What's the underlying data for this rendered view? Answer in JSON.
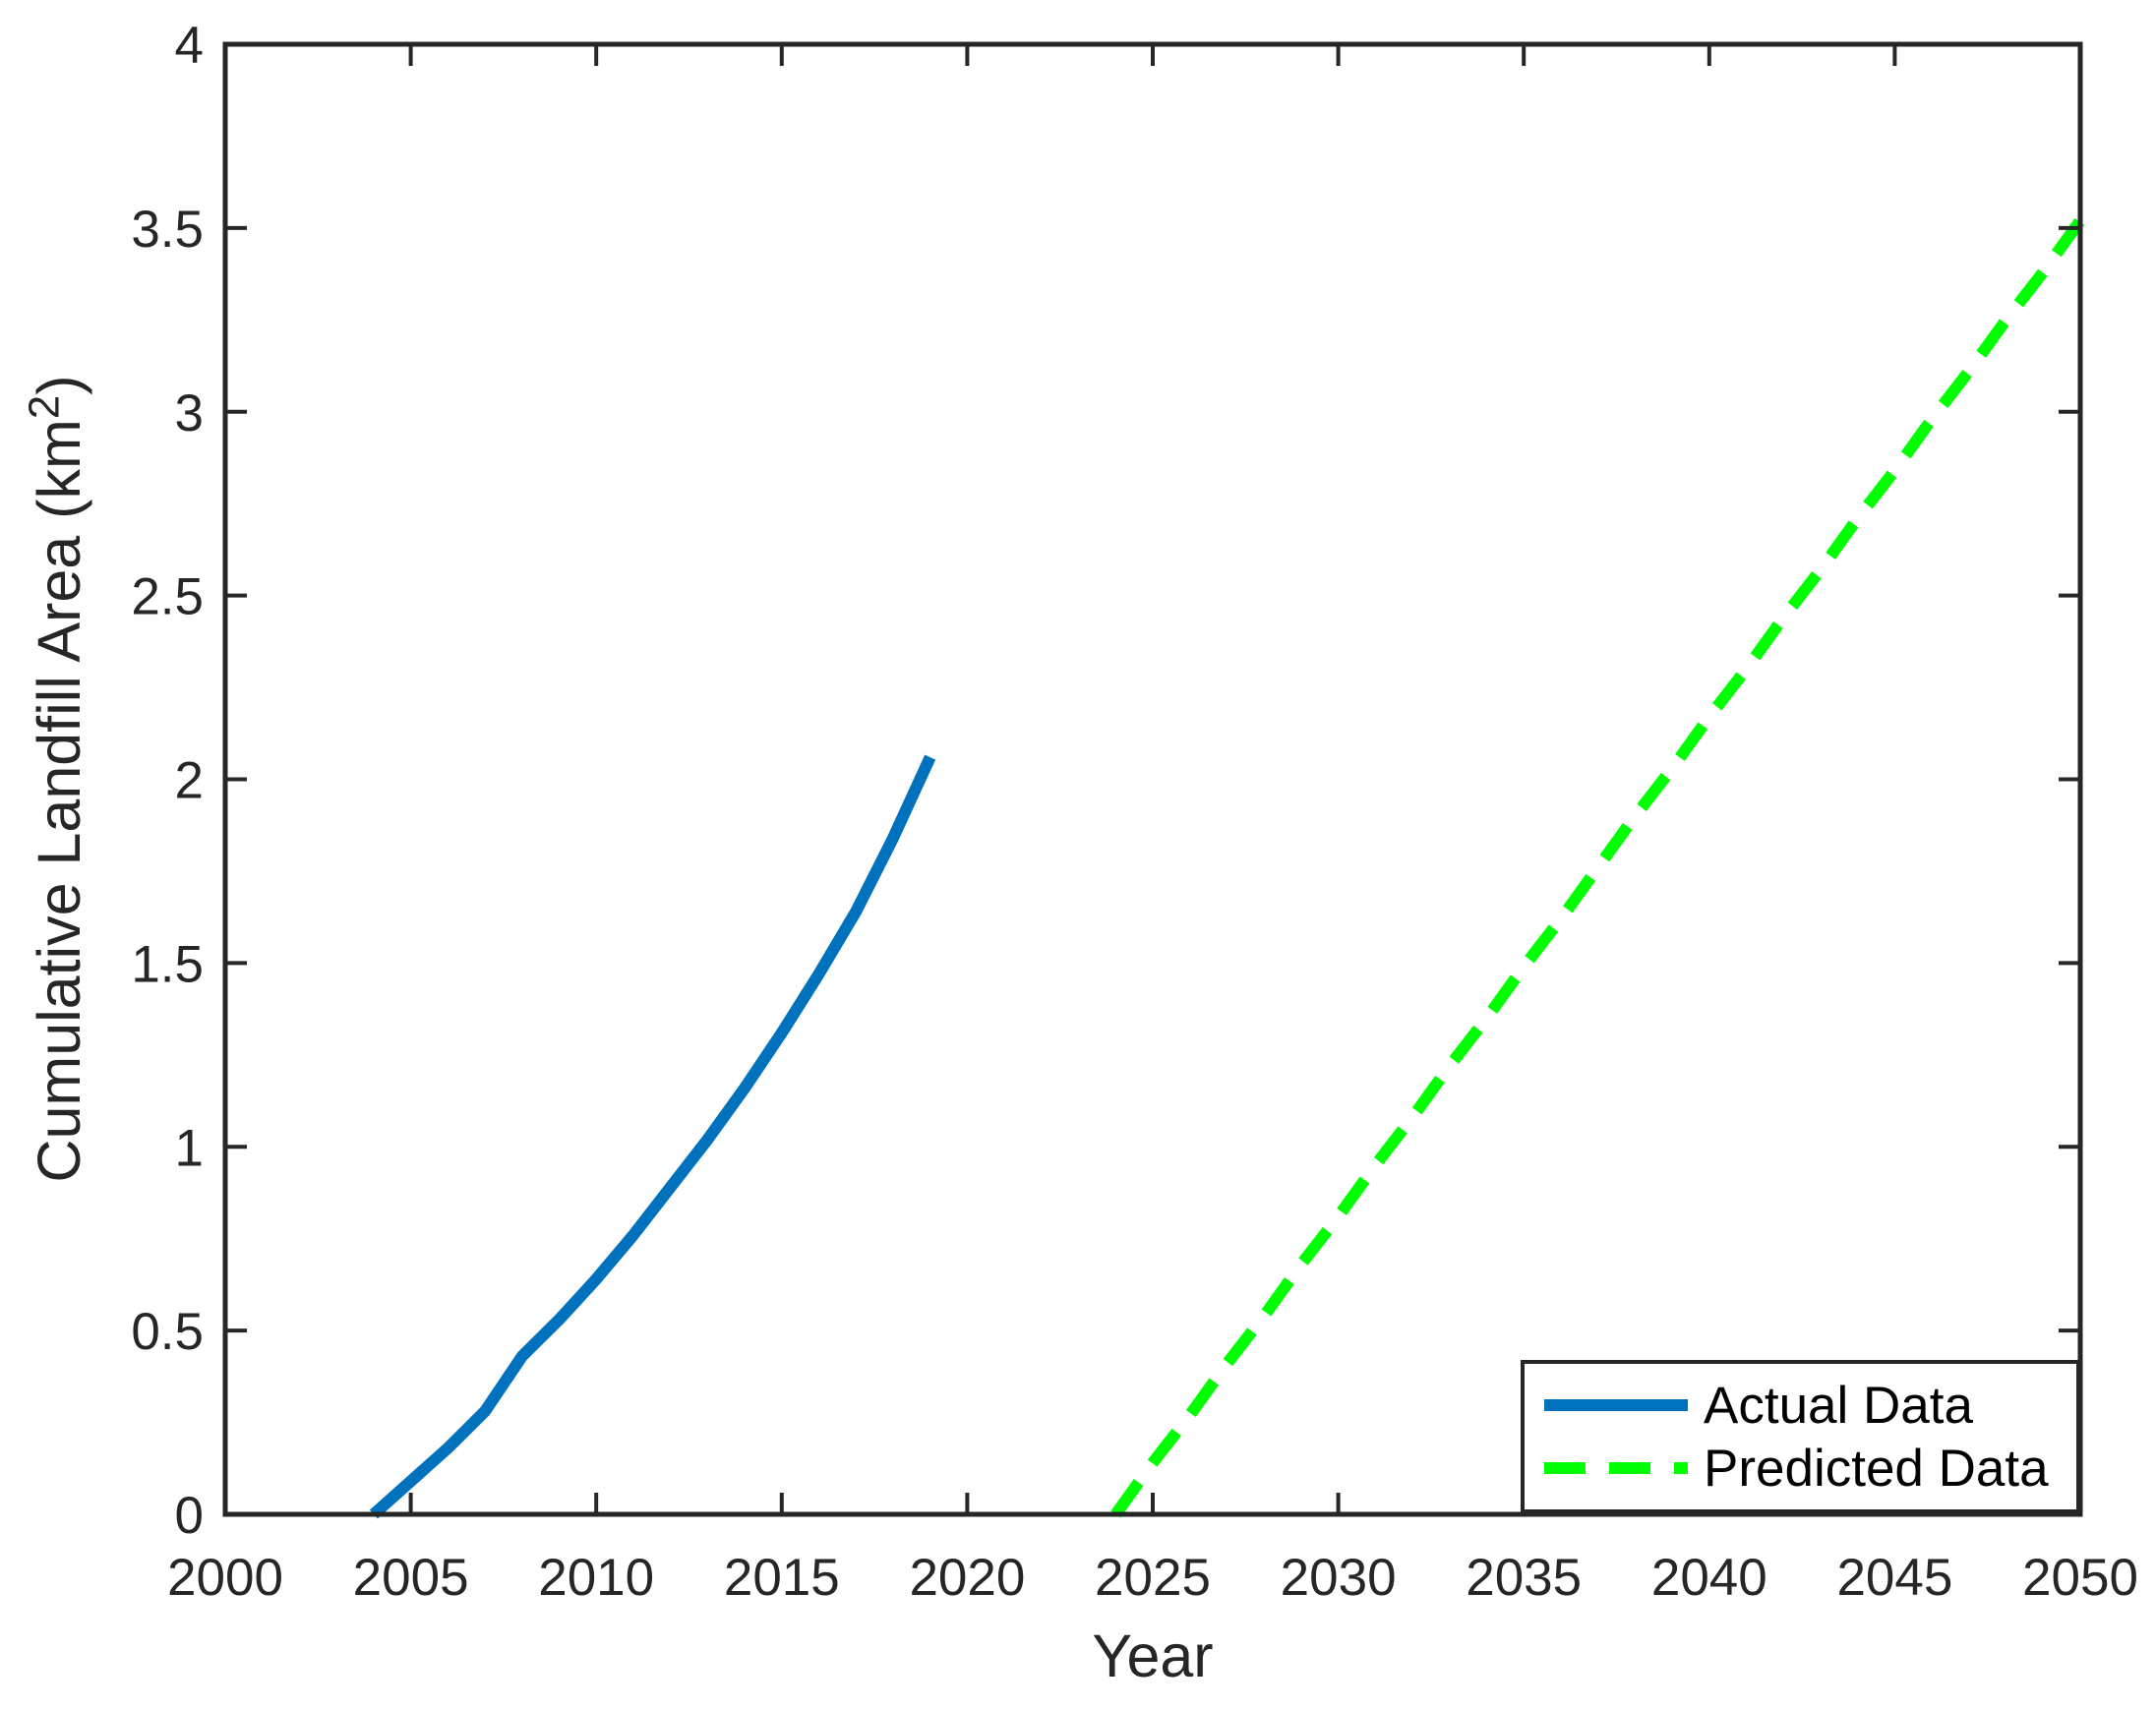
{
  "figure": {
    "background_color": "#ffffff",
    "axis_color": "#262626",
    "text_color": "#262626"
  },
  "chart_data": {
    "type": "line",
    "title": "",
    "xlabel": "Year",
    "ylabel": "Cumulative Landfill Area (km²)",
    "ylabel_main": "Cumulative Landfill Area (km",
    "ylabel_sup": "2",
    "ylabel_close": ")",
    "xlim": [
      2000,
      2050
    ],
    "ylim": [
      0,
      4
    ],
    "x_ticks": [
      2000,
      2005,
      2010,
      2015,
      2020,
      2025,
      2030,
      2035,
      2040,
      2045,
      2050
    ],
    "x_tick_labels": [
      "2000",
      "2005",
      "2010",
      "2015",
      "2020",
      "2025",
      "2030",
      "2035",
      "2040",
      "2045",
      "2050"
    ],
    "y_ticks": [
      0,
      0.5,
      1,
      1.5,
      2,
      2.5,
      3,
      3.5,
      4
    ],
    "y_tick_labels": [
      "0",
      "0.5",
      "1",
      "1.5",
      "2",
      "2.5",
      "3",
      "3.5",
      "4"
    ],
    "grid": false,
    "box": true,
    "legend_position": "southeast",
    "series": [
      {
        "name": "Actual Data",
        "color": "#0072BD",
        "style": "solid",
        "line_width": 12,
        "x": [
          2004,
          2005,
          2006,
          2007,
          2008,
          2009,
          2010,
          2011,
          2012,
          2013,
          2014,
          2015,
          2016,
          2017,
          2018,
          2019
        ],
        "y": [
          0,
          0.09,
          0.18,
          0.28,
          0.43,
          0.53,
          0.64,
          0.76,
          0.89,
          1.02,
          1.16,
          1.31,
          1.47,
          1.64,
          1.84,
          2.06
        ]
      },
      {
        "name": "Predicted Data",
        "color": "#00FF00",
        "style": "dashed",
        "line_width": 12,
        "x": [
          2024,
          2025,
          2026,
          2027,
          2028,
          2029,
          2030,
          2031,
          2032,
          2033,
          2034,
          2035,
          2036,
          2037,
          2038,
          2039,
          2040,
          2041,
          2042,
          2043,
          2044,
          2045,
          2046,
          2047,
          2048,
          2049,
          2050
        ],
        "y": [
          0,
          0.14,
          0.27,
          0.41,
          0.54,
          0.68,
          0.81,
          0.95,
          1.08,
          1.22,
          1.35,
          1.49,
          1.62,
          1.76,
          1.9,
          2.03,
          2.17,
          2.3,
          2.44,
          2.57,
          2.71,
          2.84,
          2.98,
          3.11,
          3.25,
          3.38,
          3.52
        ]
      }
    ]
  },
  "legend": {
    "items": [
      {
        "label": "Actual Data",
        "color": "#0072BD",
        "style": "solid"
      },
      {
        "label": "Predicted Data",
        "color": "#00FF00",
        "style": "dashed"
      }
    ]
  }
}
